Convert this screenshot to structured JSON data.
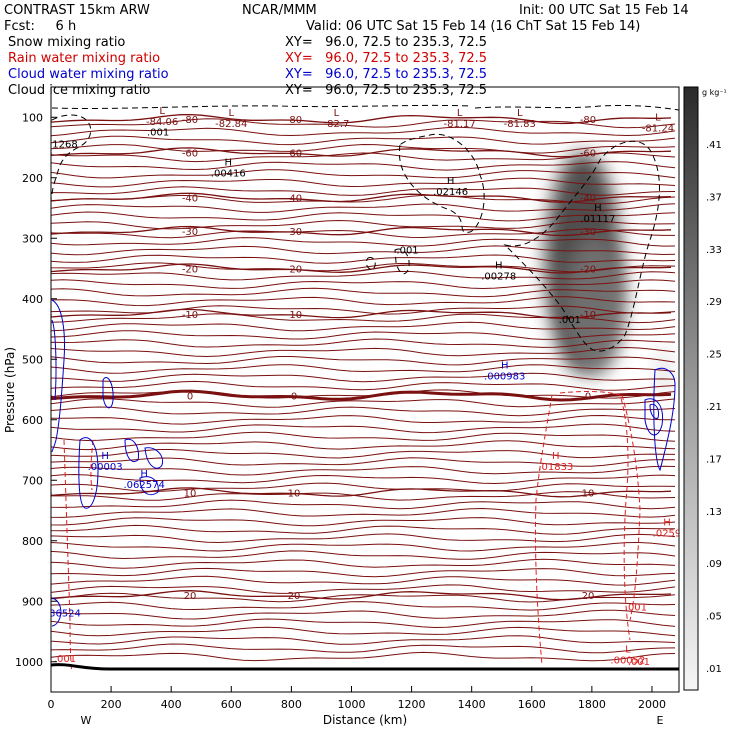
{
  "header": {
    "model": "CONTRAST 15km ARW",
    "center": "NCAR/MMM",
    "init": "Init: 00 UTC Sat 15 Feb 14",
    "fcst": "Fcst:     6 h",
    "valid": "Valid: 06 UTC Sat 15 Feb 14 (16 ChT Sat 15 Feb 14)"
  },
  "fields": [
    {
      "name": "Snow mixing ratio",
      "xy": "XY=   96.0, 72.5 to 235.3, 72.5",
      "color": "#000000"
    },
    {
      "name": "Rain water mixing ratio",
      "xy": "XY=   96.0, 72.5 to 235.3, 72.5",
      "color": "#d00000"
    },
    {
      "name": "Cloud water mixing ratio",
      "xy": "XY=   96.0, 72.5 to 235.3, 72.5",
      "color": "#0000cc"
    },
    {
      "name": "Cloud ice mixing ratio",
      "xy": "XY=   96.0, 72.5 to 235.3, 72.5",
      "color": "#000000"
    }
  ],
  "colors": {
    "temperature": "#7a1010",
    "rain": "#e02020",
    "cloud_water": "#0000cc",
    "ice": "#000000"
  },
  "chart_data": {
    "type": "heatmap",
    "xlabel": "Distance (km)",
    "ylabel": "Pressure (hPa)",
    "xlim": [
      0,
      2090
    ],
    "ylim": [
      1050,
      50
    ],
    "x_ticks": [
      "0",
      "200",
      "400",
      "600",
      "800",
      "1000",
      "1200",
      "1400",
      "1600",
      "1800",
      "2000"
    ],
    "y_ticks": [
      "100",
      "200",
      "300",
      "400",
      "500",
      "600",
      "700",
      "800",
      "900",
      "1000"
    ],
    "direction_labels": {
      "left": "W",
      "right": "E"
    },
    "colorbar": {
      "unit": "g kg⁻¹",
      "labels": [
        ".41",
        ".37",
        ".33",
        ".29",
        ".25",
        ".21",
        ".17",
        ".13",
        ".09",
        ".05",
        ".01"
      ]
    },
    "snow_maxima": [
      {
        "x": 1770,
        "p": 340,
        "value": 0.42
      },
      {
        "x": 1810,
        "p": 410,
        "value": 0.3
      },
      {
        "x": 2040,
        "p": 520,
        "value": 0.06
      }
    ],
    "temperature_contours": [
      {
        "label": "-80",
        "p": 103
      },
      {
        "label": "-60",
        "p": 158
      },
      {
        "label": "-40",
        "p": 233
      },
      {
        "label": "-30",
        "p": 288
      },
      {
        "label": "-20",
        "p": 350
      },
      {
        "label": "-10",
        "p": 425
      },
      {
        "label": "0",
        "p": 560
      },
      {
        "label": "10",
        "p": 720
      },
      {
        "label": "20",
        "p": 890
      }
    ],
    "extrema": [
      {
        "type": "L",
        "value": "-84.06",
        "x": 370,
        "p": 95,
        "color": "temperature"
      },
      {
        "type": "L",
        "value": "-82.84",
        "x": 600,
        "p": 98,
        "color": "temperature"
      },
      {
        "type": "L",
        "value": "-82.7",
        "x": 950,
        "p": 98,
        "color": "temperature"
      },
      {
        "type": "L",
        "value": "-81.17",
        "x": 1360,
        "p": 98,
        "color": "temperature"
      },
      {
        "type": "L",
        "value": "-81.83",
        "x": 1560,
        "p": 98,
        "color": "temperature"
      },
      {
        "type": "L",
        "value": "-81.24",
        "x": 2020,
        "p": 105,
        "color": "temperature"
      },
      {
        "type": "H",
        "value": ".00416",
        "x": 590,
        "p": 180,
        "color": "ice"
      },
      {
        "type": "H",
        "value": ".02146",
        "x": 1330,
        "p": 210,
        "color": "ice"
      },
      {
        "type": "H",
        "value": ".01117",
        "x": 1820,
        "p": 255,
        "color": "ice"
      },
      {
        "type": "H",
        "value": ".00278",
        "x": 1490,
        "p": 350,
        "color": "ice"
      },
      {
        "type": "H",
        "value": ".000983",
        "x": 1510,
        "p": 515,
        "color": "cloud_water"
      },
      {
        "type": "H",
        "value": ".00003",
        "x": 180,
        "p": 665,
        "color": "cloud_water"
      },
      {
        "type": "H",
        "value": ".062574",
        "x": 310,
        "p": 695,
        "color": "cloud_water"
      },
      {
        "type": "H",
        "value": ".01833",
        "x": 1680,
        "p": 665,
        "color": "rain"
      },
      {
        "type": "H",
        "value": ".0259",
        "x": 2050,
        "p": 775,
        "color": "rain"
      },
      {
        "type": "L",
        "value": ".00052",
        "x": 1920,
        "p": 985,
        "color": "rain"
      }
    ],
    "misc_labels": [
      {
        "text": ".001",
        "x": 310,
        "p": 130,
        "color": "ice"
      },
      {
        "text": "1268",
        "x": 0,
        "p": 150,
        "color": "ice"
      },
      {
        "text": ".001",
        "x": 1140,
        "p": 325,
        "color": "ice"
      },
      {
        "text": ".001",
        "x": 1680,
        "p": 440,
        "color": "ice"
      },
      {
        "text": ".001",
        "x": 0,
        "p": 1000,
        "color": "rain"
      },
      {
        "text": ".001",
        "x": 1900,
        "p": 915,
        "color": "rain"
      },
      {
        "text": ".001",
        "x": 1910,
        "p": 1005,
        "color": "rain"
      },
      {
        "text": "36524",
        "x": 0,
        "p": 925,
        "color": "cloud_water"
      }
    ]
  }
}
